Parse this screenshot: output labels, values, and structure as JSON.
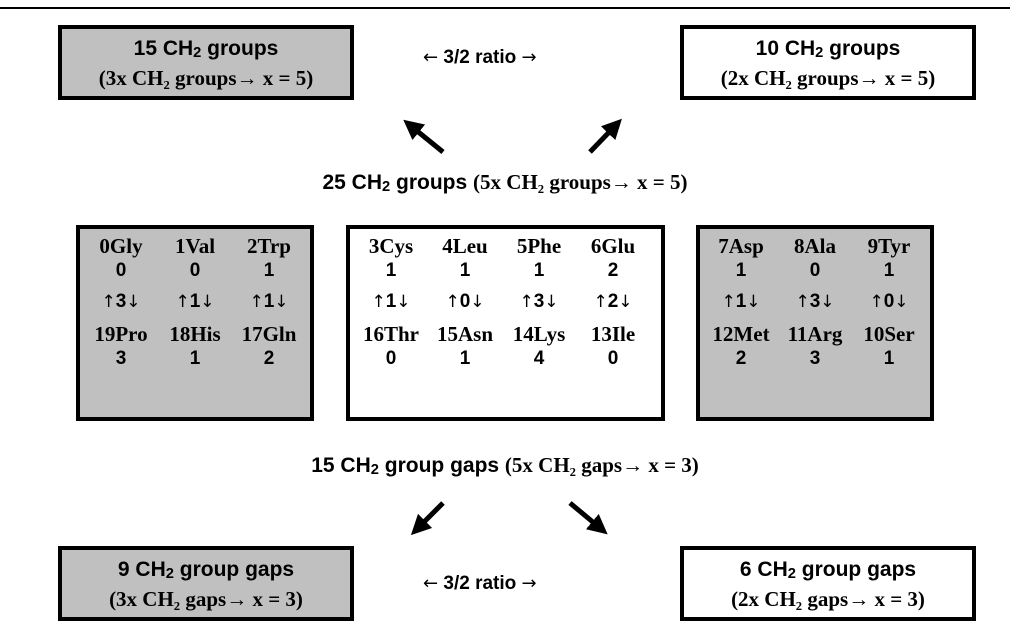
{
  "top_left_box": {
    "line1_pre": "15 CH",
    "line1_post": " groups",
    "line2": "(3x CH₂ groups→ x = 5)"
  },
  "top_right_box": {
    "line1_pre": "10 CH",
    "line1_post": " groups",
    "line2": "(2x CH₂ groups→ x = 5)"
  },
  "top_ratio": {
    "left_arrow": "←",
    "text": "3/2 ratio",
    "right_arrow": "→"
  },
  "middle_top_label": {
    "pre": "25 CH",
    "post": " groups ",
    "serif": "(5x CH₂ groups→ x = 5)"
  },
  "middle_bottom_label": {
    "pre": "15 CH",
    "post": " group gaps ",
    "serif": "(5x CH₂ gaps→ x = 3)"
  },
  "bottom_left_box": {
    "line1_pre": "9 CH",
    "line1_post": " group gaps",
    "line2": "(3x CH₂ gaps→ x = 3)"
  },
  "bottom_right_box": {
    "line1_pre": "6 CH",
    "line1_post": " group gaps",
    "line2": "(2x CH₂ gaps→ x = 3)"
  },
  "bottom_ratio": {
    "left_arrow": "←",
    "text": "3/2 ratio",
    "right_arrow": "→"
  },
  "sub2": "2",
  "groups": [
    {
      "top_aa": [
        "0Gly",
        "1Val",
        "2Trp"
      ],
      "top_num": [
        "0",
        "0",
        "1"
      ],
      "gaps": [
        "3",
        "1",
        "1"
      ],
      "bottom_aa": [
        "19Pro",
        "18His",
        "17Gln"
      ],
      "bottom_num": [
        "3",
        "1",
        "2"
      ]
    },
    {
      "top_aa": [
        "3Cys",
        "4Leu",
        "5Phe",
        "6Glu"
      ],
      "top_num": [
        "1",
        "1",
        "1",
        "2"
      ],
      "gaps": [
        "1",
        "0",
        "3",
        "2"
      ],
      "bottom_aa": [
        "16Thr",
        "15Asn",
        "14Lys",
        "13Ile"
      ],
      "bottom_num": [
        "0",
        "1",
        "4",
        "0"
      ]
    },
    {
      "top_aa": [
        "7Asp",
        "8Ala",
        "9Tyr"
      ],
      "top_num": [
        "1",
        "0",
        "1"
      ],
      "gaps": [
        "1",
        "3",
        "0"
      ],
      "bottom_aa": [
        "12Met",
        "11Arg",
        "10Ser"
      ],
      "bottom_num": [
        "2",
        "3",
        "1"
      ]
    }
  ],
  "arrow_glyphs": {
    "up": "↑",
    "down": "↓"
  },
  "colors": {
    "gray_box": "#c0c0c0",
    "white_box": "#ffffff",
    "border": "#000000"
  }
}
